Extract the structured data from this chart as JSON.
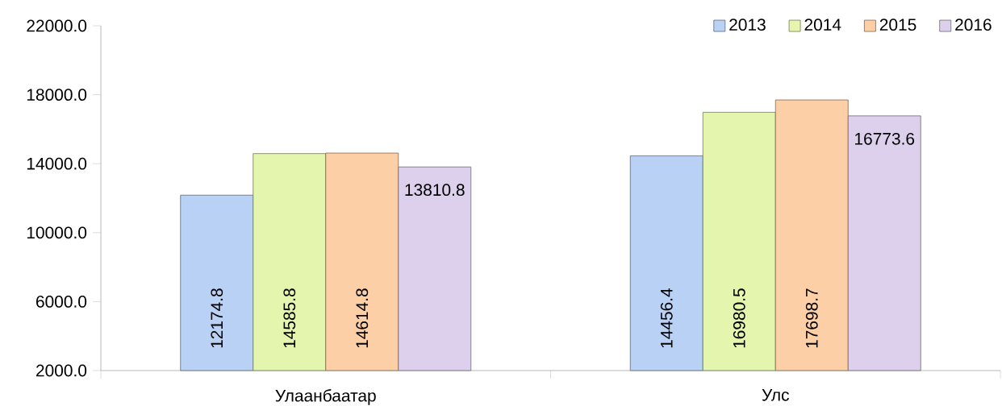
{
  "chart_data": {
    "type": "bar",
    "categories": [
      "Улаанбаатар",
      "Улс"
    ],
    "series": [
      {
        "name": "2013",
        "color": "#b9d1f4",
        "values": [
          12174.8,
          14456.4
        ]
      },
      {
        "name": "2014",
        "color": "#e4f5ae",
        "values": [
          14585.8,
          16980.5
        ]
      },
      {
        "name": "2015",
        "color": "#fdcfa6",
        "values": [
          14614.8,
          17698.7
        ]
      },
      {
        "name": "2016",
        "color": "#dcd0ec",
        "values": [
          13810.8,
          16773.6
        ]
      }
    ],
    "ylim": [
      2000,
      22000
    ],
    "yticks": [
      {
        "value": 2000,
        "label": "2000.0"
      },
      {
        "value": 6000,
        "label": "6000.0"
      },
      {
        "value": 10000,
        "label": "10000.0"
      },
      {
        "value": 14000,
        "label": "14000.0"
      },
      {
        "value": 18000,
        "label": "18000.0"
      },
      {
        "value": 22000,
        "label": "22000.0"
      }
    ],
    "data_labels": true,
    "legend": "top right",
    "grid": false
  }
}
